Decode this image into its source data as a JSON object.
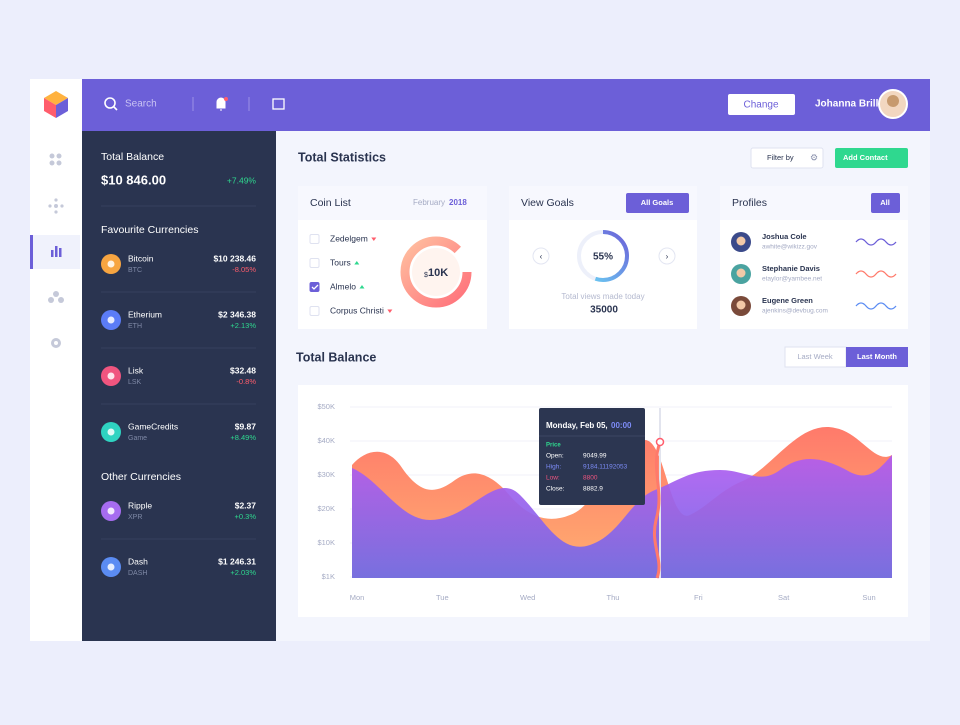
{
  "topbar": {
    "search": "Search",
    "change_button": "Change",
    "user_name": "Johanna Brill"
  },
  "sidebar": {
    "total_balance": {
      "title": "Total Balance",
      "amount": "$10 846.00",
      "change": "+7.49%"
    },
    "favourite": {
      "title": "Favourite Currencies",
      "items": [
        {
          "name": "Bitcoin",
          "code": "BTC",
          "amount": "$10 238.46",
          "change": "-8.05%",
          "color": "#f7a541"
        },
        {
          "name": "Etherium",
          "code": "ETH",
          "amount": "$2 346.38",
          "change": "+2.13%",
          "color": "#5b7cf7"
        },
        {
          "name": "Lisk",
          "code": "LSK",
          "amount": "$32.48",
          "change": "-0.8%",
          "color": "#f0557f"
        },
        {
          "name": "GameCredits",
          "code": "Game",
          "amount": "$9.87",
          "change": "+8.49%",
          "color": "#2fd3c1"
        }
      ]
    },
    "other": {
      "title": "Other Currencies",
      "items": [
        {
          "name": "Ripple",
          "code": "XPR",
          "amount": "$2.37",
          "change": "+0.3%",
          "color": "#a66cf0"
        },
        {
          "name": "Dash",
          "code": "DASH",
          "amount": "$1 246.31",
          "change": "+2.03%",
          "color": "#5b8cf3"
        }
      ]
    }
  },
  "main": {
    "title": "Total Statistics",
    "filter": "Filter by",
    "add_contact": "Add Contact",
    "coin_list": {
      "title": "Coin List",
      "month": "February",
      "year": "2018",
      "currency": "$",
      "amount": "10K",
      "items": [
        {
          "name": "Zedelgem",
          "trend": "down",
          "checked": false
        },
        {
          "name": "Tours",
          "trend": "up",
          "checked": false
        },
        {
          "name": "Almelo",
          "trend": "up",
          "checked": true
        },
        {
          "name": "Corpus Christi",
          "trend": "down",
          "checked": false
        }
      ]
    },
    "view_goals": {
      "title": "View Goals",
      "button": "All Goals",
      "percent": "55%",
      "caption": "Total views made today",
      "value": "35000"
    },
    "profiles": {
      "title": "Profiles",
      "button": "All",
      "people": [
        {
          "name": "Joshua Cole",
          "email": "awhite@wikizz.gov",
          "color": "#3b4a8a"
        },
        {
          "name": "Stephanie Davis",
          "email": "etaylor@yambee.net",
          "color": "#4aa3a0"
        },
        {
          "name": "Eugene Green",
          "email": "ajenkins@devbug.com",
          "color": "#7a4a3a"
        }
      ]
    },
    "balance": {
      "title": "Total Balance",
      "tabs": [
        "Last Week",
        "Last Month"
      ],
      "yticks": [
        "$50K",
        "$40K",
        "$30K",
        "$20K",
        "$10K",
        "$1K"
      ],
      "days": [
        "Mon",
        "Tue",
        "Wed",
        "Thu",
        "Fri",
        "Sat",
        "Sun"
      ],
      "tooltip": {
        "date": "Monday, Feb 05,",
        "time": "00:00",
        "price_label": "Price",
        "rows": [
          {
            "label": "Open:",
            "value": "9049.99",
            "color": "#ffffff"
          },
          {
            "label": "High:",
            "value": "9184.11192053",
            "color": "#7d8cf7"
          },
          {
            "label": "Low:",
            "value": "8800",
            "color": "#f0557f"
          },
          {
            "label": "Close:",
            "value": "8882.9",
            "color": "#ffffff"
          }
        ]
      }
    }
  }
}
